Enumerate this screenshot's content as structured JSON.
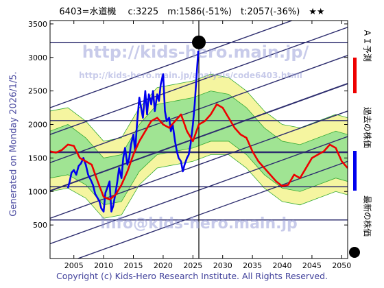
{
  "header": {
    "title": "6403=水道機　 c:3225　m:1586(-51%)　t:2057(-36%)　★★"
  },
  "side_note": "Generated on Monday 2026/1/5.",
  "copyright": "Copyright (c) Kids-Hero Research Institute. All Rights Reserved.",
  "watermarks": {
    "url_big": "http://kids-hero.main.jp/",
    "url_small": "http://kids-hero.main.jp/analysis/code6403.html",
    "email": "info@kids-hero.main.jp"
  },
  "legend": {
    "forecast": {
      "label": "ＡＩ予測",
      "color": "#ee0000"
    },
    "past": {
      "label": "過去の株価",
      "color": "#0000ee"
    },
    "latest": {
      "label": "最新の株価",
      "color": "#000000"
    }
  },
  "colors": {
    "band_outer": "#f5f5a0",
    "band_inner": "#90e090",
    "band_line": "#33aa33",
    "channel": "#2d2d6e"
  },
  "chart_data": {
    "type": "line",
    "xlim": [
      2001,
      2051
    ],
    "ylim": [
      0,
      3550
    ],
    "x_ticks": [
      2005,
      2010,
      2015,
      2020,
      2025,
      2030,
      2035,
      2040,
      2045,
      2050
    ],
    "y_ticks": [
      0,
      500,
      1000,
      1500,
      2000,
      2500,
      3000,
      3500
    ],
    "grid": false,
    "latest_point": {
      "x": 2026.0,
      "y": 3225
    },
    "horizontal_levels": [
      575,
      1070,
      1586,
      2057,
      3225
    ],
    "channel_lines": [
      {
        "x": [
          2001,
          2051
        ],
        "y": [
          -150,
          1450
        ]
      },
      {
        "x": [
          2001,
          2051
        ],
        "y": [
          220,
          1820
        ]
      },
      {
        "x": [
          2001,
          2051
        ],
        "y": [
          600,
          2200
        ]
      },
      {
        "x": [
          2001,
          2051
        ],
        "y": [
          1010,
          2610
        ]
      },
      {
        "x": [
          2001,
          2051
        ],
        "y": [
          1430,
          3030
        ]
      },
      {
        "x": [
          2001,
          2051
        ],
        "y": [
          1850,
          3450
        ]
      },
      {
        "x": [
          2001,
          2051
        ],
        "y": [
          2250,
          3850
        ]
      }
    ],
    "series": [
      {
        "name": "過去の株価",
        "x": [
          2004.0,
          2004.3,
          2004.6,
          2005.0,
          2005.4,
          2005.8,
          2006.2,
          2006.6,
          2007.0,
          2007.4,
          2007.8,
          2008.2,
          2008.6,
          2009.0,
          2009.3,
          2009.6,
          2010.0,
          2010.3,
          2010.6,
          2011.0,
          2011.3,
          2011.6,
          2012.0,
          2012.3,
          2012.6,
          2013.0,
          2013.3,
          2013.6,
          2014.0,
          2014.3,
          2014.6,
          2015.0,
          2015.3,
          2015.6,
          2016.0,
          2016.3,
          2016.6,
          2017.0,
          2017.3,
          2017.6,
          2018.0,
          2018.3,
          2018.6,
          2019.0,
          2019.3,
          2019.6,
          2020.0,
          2020.3,
          2020.6,
          2021.0,
          2021.3,
          2021.6,
          2022.0,
          2022.3,
          2022.6,
          2023.0,
          2023.3,
          2023.6,
          2024.0,
          2024.3,
          2024.6,
          2025.0,
          2025.3,
          2025.6,
          2025.9
        ],
        "y": [
          1050,
          1150,
          1280,
          1320,
          1250,
          1380,
          1420,
          1500,
          1400,
          1250,
          1180,
          1100,
          960,
          900,
          850,
          750,
          700,
          980,
          1050,
          1150,
          700,
          780,
          980,
          1150,
          1350,
          1200,
          1500,
          1650,
          1400,
          1500,
          1700,
          1850,
          1600,
          2000,
          2400,
          2250,
          2100,
          2500,
          2150,
          2450,
          2300,
          2500,
          2200,
          2450,
          2350,
          2600,
          2750,
          2200,
          2050,
          2100,
          1900,
          2000,
          1750,
          1600,
          1500,
          1450,
          1300,
          1400,
          1500,
          1550,
          1700,
          2000,
          2300,
          2700,
          3100
        ]
      },
      {
        "name": "ＡＩ予測",
        "x": [
          2001.0,
          2002.0,
          2003.0,
          2004.0,
          2005.0,
          2006.0,
          2007.0,
          2008.0,
          2009.0,
          2010.0,
          2011.0,
          2012.0,
          2013.0,
          2014.0,
          2015.0,
          2016.0,
          2017.0,
          2018.0,
          2019.0,
          2020.0,
          2021.0,
          2022.0,
          2023.0,
          2024.0,
          2025.0,
          2026.0,
          2027.0,
          2028.0,
          2029.0,
          2030.0,
          2031.0,
          2032.0,
          2033.0,
          2034.0,
          2035.0,
          2036.0,
          2037.0,
          2038.0,
          2039.0,
          2040.0,
          2041.0,
          2042.0,
          2043.0,
          2044.0,
          2045.0,
          2046.0,
          2047.0,
          2048.0,
          2049.0,
          2050.0,
          2051.0
        ],
        "y": [
          1600,
          1580,
          1620,
          1700,
          1680,
          1500,
          1450,
          1400,
          1150,
          920,
          880,
          950,
          1100,
          1300,
          1550,
          1750,
          1900,
          2050,
          2100,
          2000,
          1950,
          2050,
          2150,
          1900,
          1750,
          2000,
          2050,
          2150,
          2300,
          2250,
          2100,
          1950,
          1850,
          1800,
          1600,
          1450,
          1350,
          1250,
          1150,
          1080,
          1100,
          1250,
          1200,
          1350,
          1500,
          1550,
          1600,
          1700,
          1650,
          1450,
          1350
        ]
      }
    ],
    "forecast_band": {
      "x": [
        2001,
        2004,
        2007,
        2010,
        2013,
        2016,
        2019,
        2022,
        2025,
        2028,
        2031,
        2034,
        2037,
        2040,
        2043,
        2046,
        2049,
        2051
      ],
      "outer_low": [
        1000,
        1050,
        900,
        600,
        650,
        1100,
        1350,
        1400,
        1450,
        1550,
        1550,
        1350,
        1050,
        850,
        800,
        900,
        1000,
        950
      ],
      "inner_low": [
        1200,
        1250,
        1100,
        800,
        850,
        1300,
        1550,
        1600,
        1650,
        1750,
        1750,
        1550,
        1250,
        1050,
        1000,
        1100,
        1200,
        1150
      ],
      "inner_high": [
        1900,
        2000,
        1800,
        1500,
        1550,
        2000,
        2300,
        2350,
        2400,
        2500,
        2450,
        2250,
        1950,
        1750,
        1700,
        1800,
        1900,
        1850
      ],
      "outer_high": [
        2200,
        2250,
        2050,
        1750,
        1800,
        2250,
        2550,
        2600,
        2650,
        2750,
        2700,
        2500,
        2200,
        2000,
        1950,
        2050,
        2150,
        2100
      ]
    }
  }
}
